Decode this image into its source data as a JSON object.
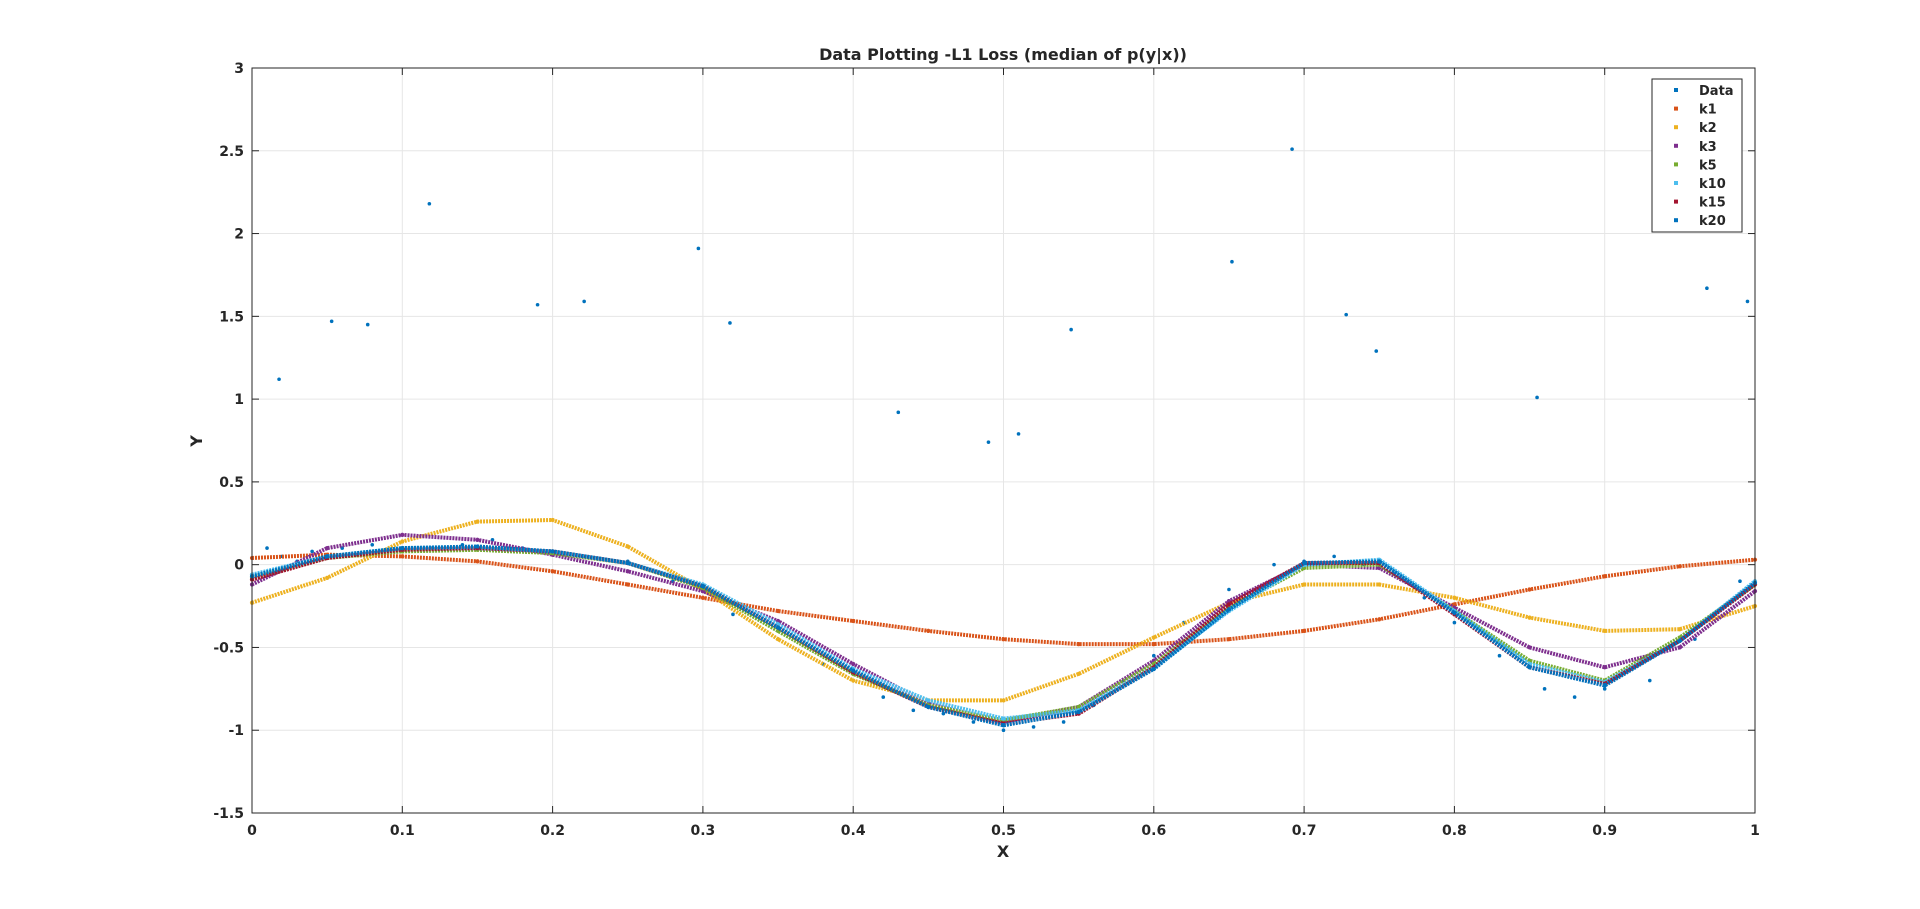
{
  "chart_data": {
    "type": "scatter",
    "title": "Data Plotting -L1 Loss (median of p(y|x))",
    "xlabel": "X",
    "ylabel": "Y",
    "xlim": [
      0,
      1
    ],
    "ylim": [
      -1.5,
      3
    ],
    "xticks": [
      "0",
      "0.1",
      "0.2",
      "0.3",
      "0.4",
      "0.5",
      "0.6",
      "0.7",
      "0.8",
      "0.9",
      "1"
    ],
    "yticks": [
      "-1.5",
      "-1",
      "-0.5",
      "0",
      "0.5",
      "1",
      "1.5",
      "2",
      "2.5",
      "3"
    ],
    "grid": true,
    "legend_position": "top-right",
    "series": [
      {
        "name": "Data",
        "color": "#0072BD",
        "marker": "dots",
        "x": [
          0.01,
          0.02,
          0.03,
          0.04,
          0.05,
          0.06,
          0.07,
          0.08,
          0.09,
          0.1,
          0.12,
          0.14,
          0.16,
          0.18,
          0.2,
          0.22,
          0.25,
          0.28,
          0.3,
          0.32,
          0.35,
          0.38,
          0.4,
          0.42,
          0.44,
          0.46,
          0.48,
          0.5,
          0.52,
          0.54,
          0.56,
          0.58,
          0.6,
          0.62,
          0.65,
          0.68,
          0.7,
          0.72,
          0.74,
          0.76,
          0.78,
          0.8,
          0.83,
          0.86,
          0.88,
          0.9,
          0.93,
          0.96,
          0.99,
          0.018,
          0.053,
          0.077,
          0.118,
          0.19,
          0.221,
          0.297,
          0.318,
          0.545,
          0.652,
          0.692,
          0.728,
          0.748,
          0.968,
          0.995,
          0.43,
          0.49,
          0.51,
          0.855
        ],
        "y": [
          0.1,
          0.05,
          0.02,
          0.08,
          0.04,
          0.1,
          0.06,
          0.12,
          0.09,
          0.08,
          0.1,
          0.12,
          0.15,
          0.1,
          0.08,
          0.05,
          0.02,
          -0.1,
          -0.15,
          -0.3,
          -0.45,
          -0.6,
          -0.7,
          -0.8,
          -0.88,
          -0.9,
          -0.95,
          -1.0,
          -0.98,
          -0.95,
          -0.85,
          -0.7,
          -0.55,
          -0.35,
          -0.15,
          0.0,
          0.02,
          0.05,
          0.0,
          -0.05,
          -0.2,
          -0.35,
          -0.55,
          -0.75,
          -0.8,
          -0.75,
          -0.7,
          -0.45,
          -0.1,
          1.12,
          1.47,
          1.45,
          2.18,
          1.57,
          1.59,
          1.91,
          1.46,
          1.42,
          1.83,
          2.51,
          1.51,
          1.29,
          1.67,
          1.59,
          0.92,
          0.74,
          0.79,
          1.01
        ]
      },
      {
        "name": "k1",
        "color": "#D95319",
        "marker": "dots",
        "x": [
          0.0,
          0.05,
          0.1,
          0.15,
          0.2,
          0.25,
          0.3,
          0.35,
          0.4,
          0.45,
          0.5,
          0.55,
          0.6,
          0.65,
          0.7,
          0.75,
          0.8,
          0.85,
          0.9,
          0.95,
          1.0
        ],
        "y": [
          0.04,
          0.06,
          0.05,
          0.02,
          -0.04,
          -0.12,
          -0.2,
          -0.28,
          -0.34,
          -0.4,
          -0.45,
          -0.48,
          -0.48,
          -0.45,
          -0.4,
          -0.33,
          -0.24,
          -0.15,
          -0.07,
          -0.01,
          0.03
        ]
      },
      {
        "name": "k2",
        "color": "#EDB120",
        "marker": "dots",
        "x": [
          0.0,
          0.05,
          0.1,
          0.15,
          0.2,
          0.25,
          0.3,
          0.35,
          0.4,
          0.45,
          0.5,
          0.55,
          0.6,
          0.65,
          0.7,
          0.75,
          0.8,
          0.85,
          0.9,
          0.95,
          1.0
        ],
        "y": [
          -0.23,
          -0.08,
          0.14,
          0.26,
          0.27,
          0.11,
          -0.15,
          -0.45,
          -0.7,
          -0.82,
          -0.82,
          -0.66,
          -0.44,
          -0.23,
          -0.12,
          -0.12,
          -0.2,
          -0.32,
          -0.4,
          -0.39,
          -0.25
        ]
      },
      {
        "name": "k3",
        "color": "#7E2F8E",
        "marker": "dots",
        "x": [
          0.0,
          0.05,
          0.1,
          0.15,
          0.2,
          0.25,
          0.3,
          0.35,
          0.4,
          0.45,
          0.5,
          0.55,
          0.6,
          0.65,
          0.7,
          0.75,
          0.8,
          0.85,
          0.9,
          0.95,
          1.0
        ],
        "y": [
          -0.12,
          0.1,
          0.18,
          0.15,
          0.06,
          -0.04,
          -0.16,
          -0.34,
          -0.6,
          -0.84,
          -0.95,
          -0.86,
          -0.58,
          -0.22,
          0.0,
          -0.02,
          -0.26,
          -0.5,
          -0.62,
          -0.5,
          -0.16
        ]
      },
      {
        "name": "k5",
        "color": "#77AC30",
        "marker": "dots",
        "x": [
          0.0,
          0.05,
          0.1,
          0.15,
          0.2,
          0.25,
          0.3,
          0.35,
          0.4,
          0.45,
          0.5,
          0.55,
          0.6,
          0.65,
          0.7,
          0.75,
          0.8,
          0.85,
          0.9,
          0.95,
          1.0
        ],
        "y": [
          -0.08,
          0.04,
          0.08,
          0.09,
          0.07,
          0.01,
          -0.14,
          -0.4,
          -0.66,
          -0.85,
          -0.94,
          -0.86,
          -0.6,
          -0.26,
          -0.02,
          0.0,
          -0.28,
          -0.58,
          -0.7,
          -0.44,
          -0.12
        ]
      },
      {
        "name": "k10",
        "color": "#4DBEEE",
        "marker": "dots",
        "x": [
          0.0,
          0.05,
          0.1,
          0.15,
          0.2,
          0.25,
          0.3,
          0.35,
          0.4,
          0.45,
          0.5,
          0.55,
          0.6,
          0.65,
          0.7,
          0.75,
          0.8,
          0.85,
          0.9,
          0.95,
          1.0
        ],
        "y": [
          -0.06,
          0.05,
          0.1,
          0.1,
          0.08,
          0.01,
          -0.12,
          -0.36,
          -0.63,
          -0.82,
          -0.93,
          -0.88,
          -0.62,
          -0.28,
          0.0,
          0.03,
          -0.28,
          -0.6,
          -0.71,
          -0.46,
          -0.1
        ]
      },
      {
        "name": "k15",
        "color": "#A2142F",
        "marker": "dots",
        "x": [
          0.0,
          0.05,
          0.1,
          0.15,
          0.2,
          0.25,
          0.3,
          0.35,
          0.4,
          0.45,
          0.5,
          0.55,
          0.6,
          0.65,
          0.7,
          0.75,
          0.8,
          0.85,
          0.9,
          0.95,
          1.0
        ],
        "y": [
          -0.09,
          0.04,
          0.09,
          0.1,
          0.08,
          0.01,
          -0.13,
          -0.38,
          -0.65,
          -0.86,
          -0.96,
          -0.9,
          -0.62,
          -0.24,
          0.01,
          0.01,
          -0.3,
          -0.62,
          -0.72,
          -0.46,
          -0.12
        ]
      },
      {
        "name": "k20",
        "color": "#0072BD",
        "marker": "dots",
        "x": [
          0.0,
          0.05,
          0.1,
          0.15,
          0.2,
          0.25,
          0.3,
          0.35,
          0.4,
          0.45,
          0.5,
          0.55,
          0.6,
          0.65,
          0.7,
          0.75,
          0.8,
          0.85,
          0.9,
          0.95,
          1.0
        ],
        "y": [
          -0.07,
          0.05,
          0.1,
          0.11,
          0.08,
          0.01,
          -0.13,
          -0.38,
          -0.64,
          -0.86,
          -0.97,
          -0.89,
          -0.63,
          -0.27,
          0.01,
          0.02,
          -0.29,
          -0.62,
          -0.73,
          -0.46,
          -0.11
        ]
      }
    ]
  }
}
